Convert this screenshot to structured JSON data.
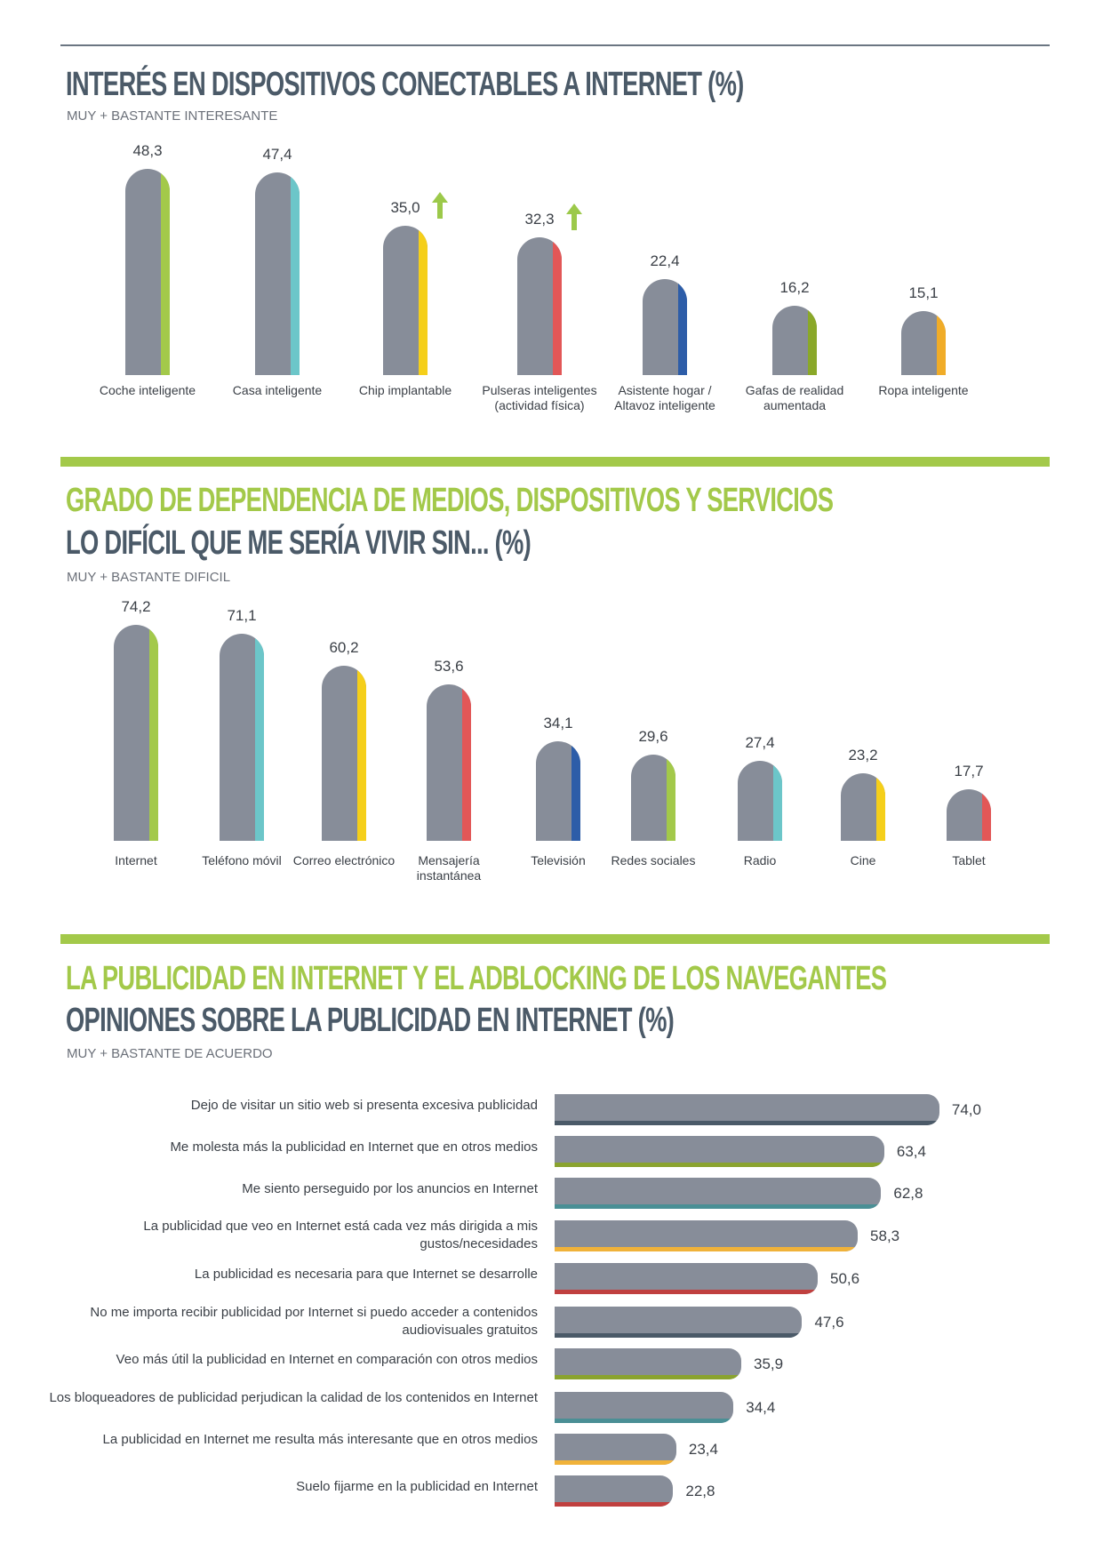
{
  "colors": {
    "bar": "#878d99",
    "green": "#a3c94a",
    "teal": "#6cc6c9",
    "yellow": "#f5cf1a",
    "red": "#e25757",
    "blue": "#2d5da8",
    "olive": "#8aa829",
    "orange": "#f0ac28",
    "arrow": "#9cc94a"
  },
  "chart_data": [
    {
      "type": "bar",
      "title": "INTERÉS EN DISPOSITIVOS CONECTABLES A INTERNET (%)",
      "subtitle": "MUY + BASTANTE INTERESANTE",
      "categories": [
        "Coche inteligente",
        "Casa inteligente",
        "Chip implantable",
        "Pulseras inteligentes (actividad física)",
        "Asistente hogar / Altavoz inteligente",
        "Gafas de realidad aumentada",
        "Ropa inteligente"
      ],
      "values": [
        48.3,
        47.4,
        35.0,
        32.3,
        22.4,
        16.2,
        15.1
      ],
      "labels": [
        "48,3",
        "47,4",
        "35,0",
        "32,3",
        "22,4",
        "16,2",
        "15,1"
      ],
      "stripes": [
        "green",
        "teal",
        "yellow",
        "red",
        "blue",
        "olive",
        "orange"
      ],
      "up_arrows": [
        false,
        false,
        true,
        true,
        false,
        false,
        false
      ]
    },
    {
      "type": "bar",
      "title": "GRADO DE DEPENDENCIA DE MEDIOS, DISPOSITIVOS Y SERVICIOS",
      "title2": "LO DIFÍCIL QUE ME SERÍA VIVIR SIN...  (%)",
      "subtitle": "MUY + BASTANTE DIFICIL",
      "categories": [
        "Internet",
        "Teléfono móvil",
        "Correo electrónico",
        "Mensajería instantánea",
        "Televisión",
        "Redes sociales",
        "Radio",
        "Cine",
        "Tablet"
      ],
      "values": [
        74.2,
        71.1,
        60.2,
        53.6,
        34.1,
        29.6,
        27.4,
        23.2,
        17.7
      ],
      "labels": [
        "74,2",
        "71,1",
        "60,2",
        "53,6",
        "34,1",
        "29,6",
        "27,4",
        "23,2",
        "17,7"
      ],
      "stripes": [
        "green",
        "teal",
        "yellow",
        "red",
        "blue",
        "green",
        "teal",
        "yellow",
        "red"
      ]
    },
    {
      "type": "bar",
      "orientation": "horizontal",
      "title": "LA PUBLICIDAD EN INTERNET Y EL ADBLOCKING DE LOS NAVEGANTES",
      "title2": "OPINIONES SOBRE LA PUBLICIDAD EN INTERNET (%)",
      "subtitle": "MUY + BASTANTE DE ACUERDO",
      "categories": [
        "Dejo de visitar un sitio web si presenta excesiva publicidad",
        "Me molesta más la publicidad en Internet que en otros medios",
        "Me siento perseguido por los anuncios en Internet",
        "La publicidad que veo en Internet está cada vez más dirigida a mis gustos/necesidades",
        "La publicidad es necesaria para que Internet se desarrolle",
        "No me importa recibir publicidad por Internet si puedo acceder a contenidos audiovisuales gratuitos",
        "Veo más útil la publicidad en Internet en comparación con otros medios",
        "Los bloqueadores de publicidad perjudican la calidad de los contenidos en Internet",
        "La publicidad en Internet me resulta más interesante que en otros medios",
        "Suelo fijarme en la publicidad en Internet"
      ],
      "values": [
        74.0,
        63.4,
        62.8,
        58.3,
        50.6,
        47.6,
        35.9,
        34.4,
        23.4,
        22.8
      ],
      "labels": [
        "74,0",
        "63,4",
        "62,8",
        "58,3",
        "50,6",
        "47,6",
        "35,9",
        "34,4",
        "23,4",
        "22,8"
      ],
      "stripes": [
        "#4b5a68",
        "#8aa32f",
        "#4a8f95",
        "#f0b23a",
        "#c0403f",
        "#4b5a68",
        "#8aa32f",
        "#4a8f95",
        "#f0b23a",
        "#c0403f"
      ]
    }
  ]
}
